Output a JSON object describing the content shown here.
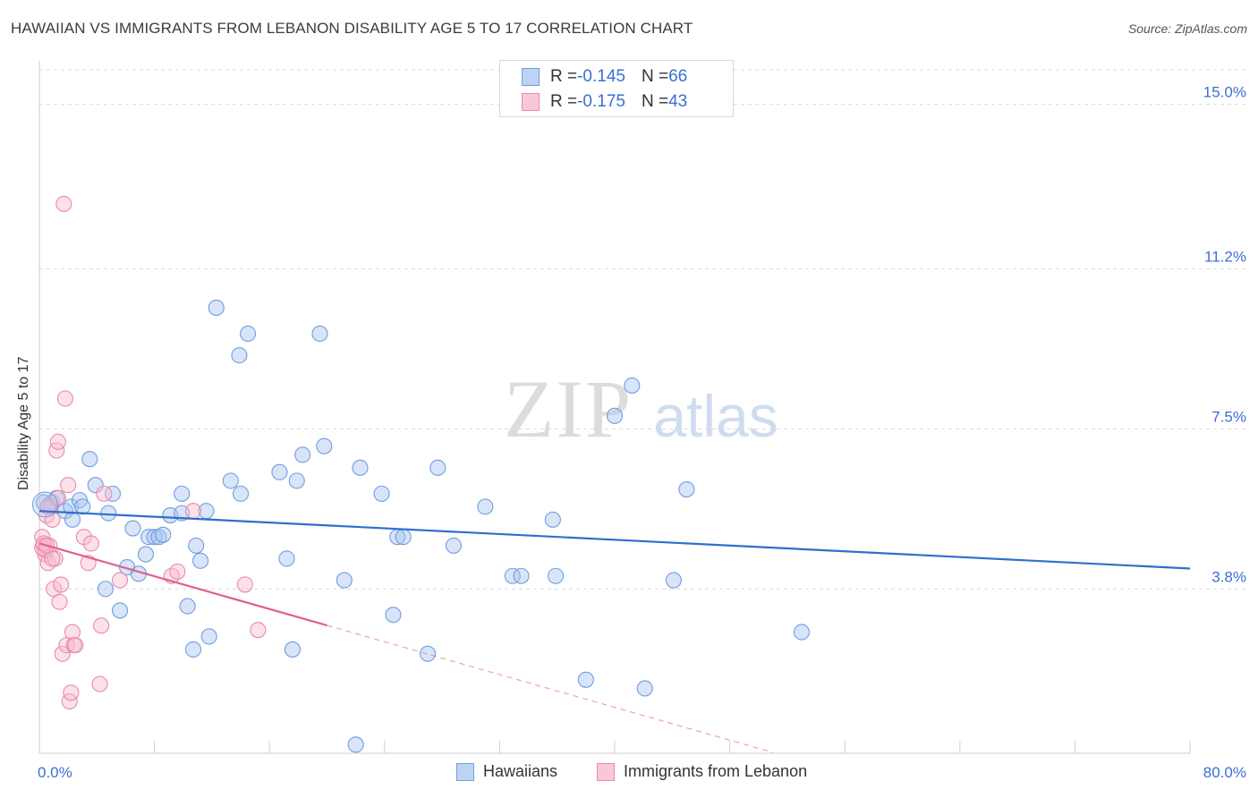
{
  "title": "HAWAIIAN VS IMMIGRANTS FROM LEBANON DISABILITY AGE 5 TO 17 CORRELATION CHART",
  "source": "Source: ZipAtlas.com",
  "watermark": {
    "zip": "ZIP",
    "atlas": "atlas"
  },
  "legend": {
    "rows": [
      {
        "r_label": "R = ",
        "r_value": "-0.145",
        "n_label": "N = ",
        "n_value": "66",
        "color": "#a9c6f0",
        "border": "#6f9de0"
      },
      {
        "r_label": "R = ",
        "r_value": "-0.175",
        "n_label": "N = ",
        "n_value": "43",
        "color": "#f8bcd0",
        "border": "#e88aaa"
      }
    ]
  },
  "bottom_legend": [
    {
      "label": "Hawaiians",
      "color": "#a9c6f0",
      "border": "#6f9de0"
    },
    {
      "label": "Immigrants from Lebanon",
      "color": "#f8bcd0",
      "border": "#e88aaa"
    }
  ],
  "chart_data": {
    "type": "scatter",
    "title": "HAWAIIAN VS IMMIGRANTS FROM LEBANON DISABILITY AGE 5 TO 17 CORRELATION CHART",
    "xlabel": "",
    "ylabel": "Disability Age 5 to 17",
    "xlim": [
      0,
      80
    ],
    "ylim": [
      0,
      15.8
    ],
    "x_tick_labels": [
      {
        "value": 0,
        "label": "0.0%"
      },
      {
        "value": 80,
        "label": "80.0%"
      }
    ],
    "y_tick_labels": [
      {
        "value": 3.8,
        "label": "3.8%"
      },
      {
        "value": 7.5,
        "label": "7.5%"
      },
      {
        "value": 11.2,
        "label": "11.2%"
      },
      {
        "value": 15.0,
        "label": "15.0%"
      }
    ],
    "grid": true,
    "series": [
      {
        "name": "Hawaiians",
        "color": "#a9c6f0",
        "stroke": "#6f9de0",
        "line_color": "#2f6fcc",
        "trend": {
          "x0": 0,
          "y0": 5.6,
          "x1": 80,
          "y1": 4.27,
          "solid_until": 80
        },
        "points": [
          [
            0.3,
            5.8
          ],
          [
            0.6,
            5.7
          ],
          [
            0.9,
            5.8
          ],
          [
            1.2,
            5.9
          ],
          [
            1.8,
            5.6
          ],
          [
            2.2,
            5.7
          ],
          [
            2.3,
            5.4
          ],
          [
            2.8,
            5.85
          ],
          [
            3.0,
            5.7
          ],
          [
            3.5,
            6.8
          ],
          [
            3.9,
            6.2
          ],
          [
            4.6,
            3.8
          ],
          [
            4.8,
            5.55
          ],
          [
            5.1,
            6.0
          ],
          [
            5.6,
            3.3
          ],
          [
            6.1,
            4.3
          ],
          [
            6.5,
            5.2
          ],
          [
            6.9,
            4.15
          ],
          [
            7.4,
            4.6
          ],
          [
            7.6,
            5.0
          ],
          [
            8.0,
            5.0
          ],
          [
            8.3,
            5.0
          ],
          [
            8.6,
            5.05
          ],
          [
            9.1,
            5.5
          ],
          [
            9.9,
            5.55
          ],
          [
            9.9,
            6.0
          ],
          [
            10.3,
            3.4
          ],
          [
            10.7,
            2.4
          ],
          [
            10.9,
            4.8
          ],
          [
            11.2,
            4.45
          ],
          [
            11.6,
            5.6
          ],
          [
            11.8,
            2.7
          ],
          [
            12.3,
            10.3
          ],
          [
            13.3,
            6.3
          ],
          [
            13.9,
            9.2
          ],
          [
            14.0,
            6.0
          ],
          [
            14.5,
            9.7
          ],
          [
            16.7,
            6.5
          ],
          [
            17.2,
            4.5
          ],
          [
            17.6,
            2.4
          ],
          [
            17.9,
            6.3
          ],
          [
            18.3,
            6.9
          ],
          [
            19.5,
            9.7
          ],
          [
            19.8,
            7.1
          ],
          [
            21.2,
            4.0
          ],
          [
            22.3,
            6.6
          ],
          [
            23.8,
            6.0
          ],
          [
            24.6,
            3.2
          ],
          [
            24.9,
            5.0
          ],
          [
            25.3,
            5.0
          ],
          [
            27.0,
            2.3
          ],
          [
            27.7,
            6.6
          ],
          [
            28.8,
            4.8
          ],
          [
            31.0,
            5.7
          ],
          [
            32.9,
            4.1
          ],
          [
            33.5,
            4.1
          ],
          [
            35.7,
            5.4
          ],
          [
            35.9,
            4.1
          ],
          [
            38.0,
            1.7
          ],
          [
            40.0,
            7.8
          ],
          [
            41.2,
            8.5
          ],
          [
            42.1,
            1.5
          ],
          [
            44.1,
            4.0
          ],
          [
            45.0,
            6.1
          ],
          [
            53.0,
            2.8
          ],
          [
            22.0,
            0.2
          ]
        ]
      },
      {
        "name": "Immigrants from Lebanon",
        "color": "#f8bcd0",
        "stroke": "#e88aaa",
        "line_color": "#e0608e",
        "trend": {
          "x0": 0,
          "y0": 4.85,
          "x1": 51,
          "y1": 0.02,
          "solid_until": 20
        },
        "points": [
          [
            0.2,
            5.0
          ],
          [
            0.3,
            4.8
          ],
          [
            0.4,
            4.6
          ],
          [
            0.5,
            5.5
          ],
          [
            0.6,
            4.4
          ],
          [
            0.7,
            4.8
          ],
          [
            0.8,
            5.7
          ],
          [
            0.9,
            5.4
          ],
          [
            1.0,
            3.8
          ],
          [
            1.1,
            4.5
          ],
          [
            1.2,
            7.0
          ],
          [
            1.3,
            7.2
          ],
          [
            1.4,
            3.5
          ],
          [
            1.5,
            3.9
          ],
          [
            1.6,
            2.3
          ],
          [
            1.7,
            12.7
          ],
          [
            1.8,
            8.2
          ],
          [
            1.9,
            2.5
          ],
          [
            2.0,
            6.2
          ],
          [
            2.1,
            1.2
          ],
          [
            2.2,
            1.4
          ],
          [
            2.3,
            2.8
          ],
          [
            2.4,
            2.5
          ],
          [
            2.5,
            2.5
          ],
          [
            3.1,
            5.0
          ],
          [
            3.4,
            4.4
          ],
          [
            3.6,
            4.85
          ],
          [
            4.2,
            1.6
          ],
          [
            4.3,
            2.95
          ],
          [
            4.5,
            6.0
          ],
          [
            5.6,
            4.0
          ],
          [
            9.2,
            4.1
          ],
          [
            9.6,
            4.2
          ],
          [
            10.7,
            5.6
          ],
          [
            14.3,
            3.9
          ],
          [
            15.2,
            2.85
          ],
          [
            0.6,
            5.7
          ],
          [
            0.4,
            4.7
          ],
          [
            0.9,
            4.5
          ],
          [
            1.3,
            5.9
          ],
          [
            0.2,
            4.75
          ],
          [
            0.3,
            4.85
          ],
          [
            0.5,
            4.8
          ]
        ]
      }
    ]
  }
}
